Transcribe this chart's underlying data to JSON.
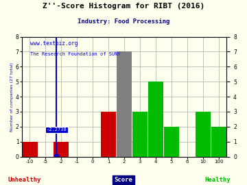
{
  "title": "Z''-Score Histogram for RIBT (2016)",
  "subtitle": "Industry: Food Processing",
  "watermark1": "www.textbiz.org",
  "watermark2": "The Research Foundation of SUNY",
  "ylabel_left": "Number of companies (27 total)",
  "xlabel_unhealthy": "Unhealthy",
  "xlabel_score": "Score",
  "xlabel_healthy": "Healthy",
  "ylim": [
    0,
    8
  ],
  "yticks": [
    0,
    1,
    2,
    3,
    4,
    5,
    6,
    7,
    8
  ],
  "xtick_labels": [
    "-10",
    "-5",
    "-2",
    "-1",
    "0",
    "1",
    "2",
    "3",
    "4",
    "5",
    "6",
    "10",
    "100"
  ],
  "bar_indices": [
    0,
    2,
    5,
    6,
    7,
    8,
    9,
    11,
    12
  ],
  "bar_heights": [
    1,
    1,
    3,
    7,
    3,
    5,
    2,
    3,
    2
  ],
  "bar_colors": [
    "#cc0000",
    "#cc0000",
    "#cc0000",
    "#808080",
    "#00bb00",
    "#00bb00",
    "#00bb00",
    "#00bb00",
    "#00bb00"
  ],
  "vline_pos": 1.7,
  "vline_label": "-2.2738",
  "vline_color": "#0000cc",
  "bg_color": "#ffffee",
  "grid_color": "#aaaaaa",
  "title_color": "#000000",
  "subtitle_color": "#000080",
  "unhealthy_color": "#cc0000",
  "healthy_color": "#00bb00",
  "score_bg_color": "#000080",
  "watermark_color": "#0000cc"
}
